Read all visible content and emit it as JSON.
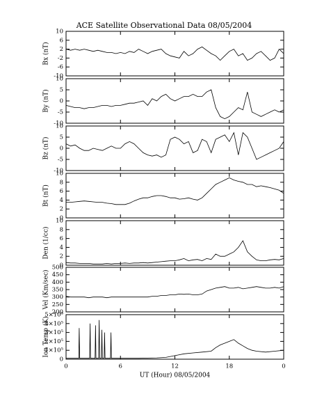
{
  "chart_data": [
    {
      "type": "line",
      "title": "ACE Satellite Observational Data   08/05/2004",
      "ylabel": "Bx (nT)",
      "color": "#000000",
      "x": [
        0,
        0.5,
        1,
        1.5,
        2,
        2.5,
        3,
        3.5,
        4,
        4.5,
        5,
        5.5,
        6,
        6.5,
        7,
        7.5,
        8,
        8.5,
        9,
        9.5,
        10,
        10.5,
        11,
        11.5,
        12,
        12.5,
        13,
        13.5,
        14,
        14.5,
        15,
        15.5,
        16,
        16.5,
        17,
        17.5,
        18,
        18.5,
        19,
        19.5,
        20,
        20.5,
        21,
        21.5,
        22,
        22.5,
        23,
        23.5,
        24
      ],
      "values": [
        2,
        1.5,
        2,
        1.5,
        2,
        1.5,
        1,
        1.5,
        1,
        0.5,
        0.5,
        0,
        0.5,
        0,
        1,
        0.5,
        2,
        1,
        0,
        1,
        1.5,
        2,
        0,
        -1,
        -1.5,
        -2,
        1,
        -1,
        0,
        2,
        3,
        1.5,
        0,
        -1,
        -3,
        -1,
        1,
        2,
        -1,
        0,
        -3,
        -2,
        0,
        1,
        -1,
        -3,
        -2,
        2,
        0
      ],
      "xlim": [
        0,
        24
      ],
      "ylim": [
        -10,
        10
      ],
      "yticks": [
        -10,
        -6,
        -2,
        2,
        6,
        10
      ]
    },
    {
      "type": "line",
      "ylabel": "By (nT)",
      "color": "#000000",
      "x": [
        0,
        0.5,
        1,
        1.5,
        2,
        2.5,
        3,
        3.5,
        4,
        4.5,
        5,
        5.5,
        6,
        6.5,
        7,
        7.5,
        8,
        8.5,
        9,
        9.5,
        10,
        10.5,
        11,
        11.5,
        12,
        12.5,
        13,
        13.5,
        14,
        14.5,
        15,
        15.5,
        16,
        16.5,
        17,
        17.5,
        18,
        18.5,
        19,
        19.5,
        20,
        20.5,
        21,
        21.5,
        22,
        22.5,
        23,
        23.5,
        24
      ],
      "values": [
        -2,
        -2.5,
        -3,
        -3,
        -3.5,
        -3,
        -3,
        -2.5,
        -2,
        -2,
        -2.5,
        -2,
        -2,
        -1.5,
        -1,
        -1,
        -0.5,
        0,
        -2,
        1,
        0,
        2,
        3,
        1,
        0,
        1,
        2,
        2,
        3,
        2,
        2,
        4,
        5,
        -3,
        -7,
        -8,
        -7,
        -5,
        -3,
        -4,
        4,
        -5,
        -6,
        -7,
        -6,
        -5,
        -4,
        -5,
        -4
      ],
      "xlim": [
        0,
        24
      ],
      "ylim": [
        -10,
        10
      ],
      "yticks": [
        -10,
        -5,
        0,
        5,
        10
      ]
    },
    {
      "type": "line",
      "ylabel": "Bz (nT)",
      "color": "#000000",
      "x": [
        0,
        0.5,
        1,
        1.5,
        2,
        2.5,
        3,
        3.5,
        4,
        4.5,
        5,
        5.5,
        6,
        6.5,
        7,
        7.5,
        8,
        8.5,
        9,
        9.5,
        10,
        10.5,
        11,
        11.5,
        12,
        12.5,
        13,
        13.5,
        14,
        14.5,
        15,
        15.5,
        16,
        16.5,
        17,
        17.5,
        18,
        18.5,
        19,
        19.5,
        20,
        20.5,
        21,
        21.5,
        22,
        22.5,
        23,
        23.5,
        24
      ],
      "values": [
        2,
        1,
        1.5,
        0,
        -1,
        -1,
        0,
        -0.5,
        -1,
        0,
        1,
        0,
        0,
        2,
        3,
        2,
        0,
        -2,
        -3,
        -3.5,
        -3,
        -4,
        -3,
        4,
        5,
        4,
        2,
        3,
        -2,
        -1,
        4,
        3,
        -2,
        4,
        5,
        6,
        3,
        7,
        -3,
        7,
        5,
        0,
        -5,
        -4,
        -3,
        -2,
        -1,
        0,
        3
      ],
      "xlim": [
        0,
        24
      ],
      "ylim": [
        -10,
        10
      ],
      "yticks": [
        -10,
        -5,
        0,
        5,
        10
      ]
    },
    {
      "type": "line",
      "ylabel": "Bt (nT)",
      "color": "#000000",
      "x": [
        0,
        0.5,
        1,
        1.5,
        2,
        2.5,
        3,
        3.5,
        4,
        4.5,
        5,
        5.5,
        6,
        6.5,
        7,
        7.5,
        8,
        8.5,
        9,
        9.5,
        10,
        10.5,
        11,
        11.5,
        12,
        12.5,
        13,
        13.5,
        14,
        14.5,
        15,
        15.5,
        16,
        16.5,
        17,
        17.5,
        18,
        18.5,
        19,
        19.5,
        20,
        20.5,
        21,
        21.5,
        22,
        22.5,
        23,
        23.5,
        24
      ],
      "values": [
        3.5,
        3.5,
        3.6,
        3.7,
        3.8,
        3.7,
        3.6,
        3.5,
        3.5,
        3.3,
        3.2,
        3,
        3,
        3,
        3.3,
        3.8,
        4.2,
        4.5,
        4.5,
        4.8,
        5,
        5,
        4.8,
        4.5,
        4.5,
        4.2,
        4.3,
        4.5,
        4.2,
        4,
        4.5,
        5.5,
        6.5,
        7.5,
        8,
        8.5,
        9,
        8.5,
        8.2,
        8,
        7.5,
        7.5,
        7,
        7.2,
        7,
        6.8,
        6.5,
        6.2,
        5.5
      ],
      "xlim": [
        0,
        24
      ],
      "ylim": [
        0,
        10
      ],
      "yticks": [
        0,
        2,
        4,
        6,
        8,
        10
      ]
    },
    {
      "type": "line",
      "ylabel": "Den (1/cc)",
      "color": "#000000",
      "x": [
        0,
        0.5,
        1,
        1.5,
        2,
        2.5,
        3,
        3.5,
        4,
        4.5,
        5,
        5.5,
        6,
        6.5,
        7,
        7.5,
        8,
        8.5,
        9,
        9.5,
        10,
        10.5,
        11,
        11.5,
        12,
        12.5,
        13,
        13.5,
        14,
        14.5,
        15,
        15.5,
        16,
        16.5,
        17,
        17.5,
        18,
        18.5,
        19,
        19.5,
        20,
        20.5,
        21,
        21.5,
        22,
        22.5,
        23,
        23.5,
        24
      ],
      "values": [
        0.6,
        0.5,
        0.5,
        0.4,
        0.4,
        0.4,
        0.3,
        0.3,
        0.3,
        0.4,
        0.3,
        0.4,
        0.4,
        0.5,
        0.4,
        0.5,
        0.5,
        0.6,
        0.5,
        0.6,
        0.7,
        0.8,
        0.9,
        1,
        1,
        1.2,
        1.5,
        1,
        1.2,
        1.3,
        1,
        1.5,
        1.3,
        2.5,
        2,
        2,
        2.5,
        3,
        4,
        5.5,
        3,
        2,
        1.2,
        1,
        1,
        1.2,
        1.3,
        1.2,
        1.5
      ],
      "xlim": [
        0,
        24
      ],
      "ylim": [
        0,
        10
      ],
      "yticks": [
        0,
        2,
        4,
        6,
        8,
        10
      ]
    },
    {
      "type": "line",
      "ylabel": "Vel (Km/sec)",
      "color": "#000000",
      "x": [
        0,
        0.5,
        1,
        1.5,
        2,
        2.5,
        3,
        3.5,
        4,
        4.5,
        5,
        5.5,
        6,
        6.5,
        7,
        7.5,
        8,
        8.5,
        9,
        9.5,
        10,
        10.5,
        11,
        11.5,
        12,
        12.5,
        13,
        13.5,
        14,
        14.5,
        15,
        15.5,
        16,
        16.5,
        17,
        17.5,
        18,
        18.5,
        19,
        19.5,
        20,
        20.5,
        21,
        21.5,
        22,
        22.5,
        23,
        23.5,
        24
      ],
      "values": [
        305,
        300,
        300,
        300,
        300,
        295,
        300,
        300,
        300,
        295,
        300,
        300,
        300,
        300,
        300,
        300,
        300,
        300,
        300,
        305,
        305,
        310,
        310,
        315,
        315,
        320,
        318,
        320,
        315,
        315,
        320,
        340,
        350,
        360,
        365,
        370,
        360,
        360,
        365,
        355,
        360,
        365,
        370,
        365,
        360,
        360,
        365,
        360,
        370
      ],
      "xlim": [
        0,
        24
      ],
      "ylim": [
        200,
        500
      ],
      "yticks": [
        200,
        250,
        300,
        350,
        400,
        450,
        500
      ]
    },
    {
      "type": "line",
      "ylabel": "Ion Temp (K)",
      "xlabel": "UT (Hour)   08/05/2004",
      "color": "#000000",
      "x": [
        0,
        1.4,
        1.45,
        1.5,
        2.6,
        2.65,
        2.7,
        3.2,
        3.25,
        3.3,
        3.6,
        3.65,
        3.7,
        3.9,
        3.95,
        4.0,
        4.2,
        4.25,
        4.3,
        4.9,
        4.95,
        5.0,
        6,
        8,
        10,
        11,
        12,
        13,
        14,
        15,
        16,
        16.5,
        17,
        17.5,
        18,
        18.5,
        19,
        19.5,
        20,
        20.5,
        21,
        22,
        23,
        24
      ],
      "values": [
        10000,
        10000,
        350000,
        10000,
        10000,
        400000,
        10000,
        10000,
        380000,
        10000,
        10000,
        440000,
        10000,
        10000,
        330000,
        10000,
        10000,
        300000,
        10000,
        10000,
        300000,
        10000,
        10000,
        10000,
        15000,
        20000,
        40000,
        60000,
        70000,
        80000,
        90000,
        130000,
        160000,
        180000,
        200000,
        220000,
        180000,
        150000,
        120000,
        100000,
        90000,
        80000,
        90000,
        100000
      ],
      "xlim": [
        0,
        24
      ],
      "xticks": [
        0,
        6,
        12,
        18,
        {
          "value": 24,
          "label": "0"
        }
      ],
      "ylim": [
        0,
        500000
      ],
      "yticks": [
        0,
        {
          "value": 100000,
          "label": "1×10⁵"
        },
        {
          "value": 200000,
          "label": "2×10⁵"
        },
        {
          "value": 300000,
          "label": "3×10⁵"
        },
        {
          "value": 400000,
          "label": "4×10⁵"
        },
        {
          "value": 500000,
          "label": "5×10⁵"
        }
      ]
    }
  ]
}
